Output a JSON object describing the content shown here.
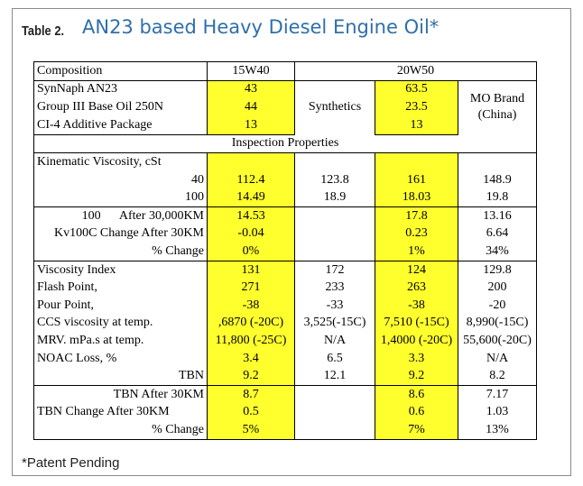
{
  "label": "Table 2.",
  "title": "AN23 based Heavy Diesel Engine Oil*",
  "footnote": "*Patent Pending",
  "headers": {
    "composition": "Composition",
    "grade_a": "15W40",
    "grade_b": "20W50"
  },
  "composition_rows": [
    {
      "label": "SynNaph AN23",
      "v15w40": "43",
      "v20w50": "63.5"
    },
    {
      "label": "Group III Base Oil 250N",
      "v15w40": "44",
      "v20w50": "23.5"
    },
    {
      "label": "CI-4 Additive Package",
      "v15w40": "13",
      "v20w50": "13"
    }
  ],
  "synthetics_label": "Synthetics",
  "mo_brand_label": "MO Brand (China)",
  "inspection_header": "Inspection Properties",
  "kv_label": "Kinematic Viscosity, cSt",
  "kv_rows": [
    {
      "label": "40",
      "c1": "112.4",
      "c2": "123.8",
      "c3": "161",
      "c4": "148.9"
    },
    {
      "label": "100",
      "c1": "14.49",
      "c2": "18.9",
      "c3": "18.03",
      "c4": "19.8"
    }
  ],
  "kv_change_rows": [
    {
      "label": "100      After 30,000KM",
      "c1": "14.53",
      "c2": "",
      "c3": "17.8",
      "c4": "13.16"
    },
    {
      "label": "Kv100C Change After 30KM",
      "c1": "-0.04",
      "c2": "",
      "c3": "0.23",
      "c4": "6.64"
    },
    {
      "label": "% Change",
      "c1": "0%",
      "c2": "",
      "c3": "1%",
      "c4": "34%"
    }
  ],
  "property_rows": [
    {
      "label": "Viscosity Index",
      "c1": "131",
      "c2": "172",
      "c3": "124",
      "c4": "129.8"
    },
    {
      "label": "Flash Point,",
      "c1": "271",
      "c2": "233",
      "c3": "263",
      "c4": "200"
    },
    {
      "label": "Pour Point,",
      "c1": "-38",
      "c2": "-33",
      "c3": "-38",
      "c4": "-20"
    },
    {
      "label": "CCS viscosity at temp.",
      "c1": ",6870 (-20C)",
      "c2": "3,525(-15C)",
      "c3": "7,510 (-15C)",
      "c4": "8,990(-15C)"
    },
    {
      "label": "MRV. mPa.s at temp.",
      "c1": "11,800 (-25C)",
      "c2": "N/A",
      "c3": "1,4000 (-20C)",
      "c4": "55,600(-20C)"
    },
    {
      "label": "NOAC Loss, %",
      "c1": "3.4",
      "c2": "6.5",
      "c3": "3.3",
      "c4": "N/A"
    },
    {
      "label": "TBN",
      "c1": "9.2",
      "c2": "12.1",
      "c3": "9.2",
      "c4": "8.2"
    }
  ],
  "tbn_rows": [
    {
      "label": "TBN After 30KM",
      "c1": "8.7",
      "c2": "",
      "c3": "8.6",
      "c4": "7.17"
    },
    {
      "label": "TBN Change After 30KM",
      "c1": "0.5",
      "c2": "",
      "c3": "0.6",
      "c4": "1.03"
    },
    {
      "label": "% Change",
      "c1": "5%",
      "c2": "",
      "c3": "7%",
      "c4": "13%"
    }
  ],
  "colors": {
    "highlight": "#ffff2e",
    "title": "#2f6faa"
  }
}
